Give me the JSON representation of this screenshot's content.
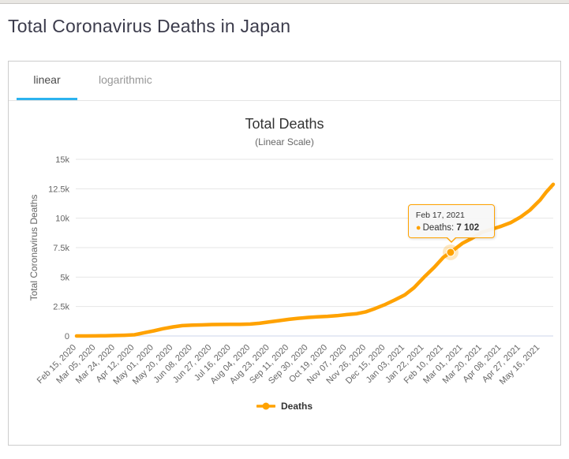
{
  "page": {
    "title": "Total Coronavirus Deaths in Japan"
  },
  "tabs": [
    {
      "label": "linear",
      "active": true
    },
    {
      "label": "logarithmic",
      "active": false
    }
  ],
  "colors": {
    "series": "#FFA200",
    "tab_active_underline": "#2CB3EF",
    "grid_line": "#E6E6E6",
    "axis_line": "#CCD6EB",
    "tick_text": "#666666"
  },
  "legend": {
    "label": "Deaths"
  },
  "chart_data": {
    "type": "line",
    "title": "Total Deaths",
    "subtitle": "(Linear Scale)",
    "ylabel": "Total Coronavirus Deaths",
    "ylim": [
      0,
      15000
    ],
    "grid": true,
    "legend_position": "bottom",
    "y_ticks": [
      "0",
      "2.5k",
      "5k",
      "7.5k",
      "10k",
      "12.5k",
      "15k"
    ],
    "x_ticks": [
      "Feb 15, 2020",
      "Mar 05, 2020",
      "Mar 24, 2020",
      "Apr 12, 2020",
      "May 01, 2020",
      "May 20, 2020",
      "Jun 08, 2020",
      "Jun 27, 2020",
      "Jul 16, 2020",
      "Aug 04, 2020",
      "Aug 23, 2020",
      "Sep 11, 2020",
      "Sep 30, 2020",
      "Oct 19, 2020",
      "Nov 07, 2020",
      "Nov 26, 2020",
      "Dec 15, 2020",
      "Jan 03, 2021",
      "Jan 22, 2021",
      "Feb 10, 2021",
      "Mar 01, 2021",
      "Mar 20, 2021",
      "Apr 08, 2021",
      "Apr 27, 2021",
      "May 16, 2021"
    ],
    "series": [
      {
        "name": "Deaths",
        "color": "#FFA200",
        "points": [
          [
            "Feb 15, 2020",
            1
          ],
          [
            "Feb 24, 2020",
            3
          ],
          [
            "Mar 05, 2020",
            6
          ],
          [
            "Mar 14, 2020",
            22
          ],
          [
            "Mar 24, 2020",
            42
          ],
          [
            "Apr 02, 2020",
            57
          ],
          [
            "Apr 12, 2020",
            98
          ],
          [
            "Apr 21, 2020",
            263
          ],
          [
            "May 01, 2020",
            432
          ],
          [
            "May 10, 2020",
            613
          ],
          [
            "May 20, 2020",
            771
          ],
          [
            "May 29, 2020",
            874
          ],
          [
            "Jun 08, 2020",
            916
          ],
          [
            "Jun 17, 2020",
            935
          ],
          [
            "Jun 27, 2020",
            972
          ],
          [
            "Jul 06, 2020",
            977
          ],
          [
            "Jul 16, 2020",
            985
          ],
          [
            "Jul 25, 2020",
            990
          ],
          [
            "Aug 04, 2020",
            1010
          ],
          [
            "Aug 13, 2020",
            1076
          ],
          [
            "Aug 23, 2020",
            1196
          ],
          [
            "Sep 01, 2020",
            1296
          ],
          [
            "Sep 11, 2020",
            1413
          ],
          [
            "Sep 20, 2020",
            1500
          ],
          [
            "Sep 30, 2020",
            1571
          ],
          [
            "Oct 09, 2020",
            1628
          ],
          [
            "Oct 19, 2020",
            1669
          ],
          [
            "Oct 28, 2020",
            1719
          ],
          [
            "Nov 07, 2020",
            1817
          ],
          [
            "Nov 16, 2020",
            1883
          ],
          [
            "Nov 26, 2020",
            2059
          ],
          [
            "Dec 05, 2020",
            2337
          ],
          [
            "Dec 15, 2020",
            2688
          ],
          [
            "Dec 24, 2020",
            3056
          ],
          [
            "Jan 03, 2021",
            3492
          ],
          [
            "Jan 12, 2021",
            4096
          ],
          [
            "Jan 22, 2021",
            4998
          ],
          [
            "Feb 01, 2021",
            5833
          ],
          [
            "Feb 10, 2021",
            6681
          ],
          [
            "Feb 17, 2021",
            7102
          ],
          [
            "Mar 01, 2021",
            7887
          ],
          [
            "Mar 10, 2021",
            8289
          ],
          [
            "Mar 20, 2021",
            8810
          ],
          [
            "Mar 29, 2021",
            9046
          ],
          [
            "Apr 08, 2021",
            9323
          ],
          [
            "Apr 17, 2021",
            9618
          ],
          [
            "Apr 27, 2021",
            10105
          ],
          [
            "May 06, 2021",
            10684
          ],
          [
            "May 16, 2021",
            11536
          ],
          [
            "May 22, 2021",
            12208
          ],
          [
            "May 29, 2021",
            12874
          ]
        ]
      }
    ],
    "tooltip": {
      "date": "Feb 17, 2021",
      "series_label": "Deaths:",
      "value": "7 102",
      "point": [
        "Feb 17, 2021",
        7102
      ]
    }
  }
}
